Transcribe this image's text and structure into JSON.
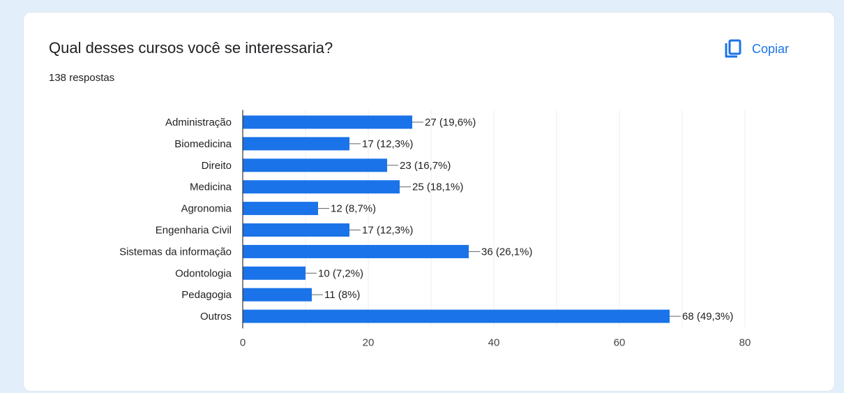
{
  "question": {
    "title": "Qual desses cursos você se interessaria?",
    "responses": "138 respostas"
  },
  "copy_button": {
    "label": "Copiar",
    "icon": "copy-icon"
  },
  "colors": {
    "bar": "#1a73e8",
    "accent": "#1a73e8",
    "background": "#e3eefb"
  },
  "chart_data": {
    "type": "bar",
    "orientation": "horizontal",
    "categories": [
      "Administração",
      "Biomedicina",
      "Direito",
      "Medicina",
      "Agronomia",
      "Engenharia Civil",
      "Sistemas da informação",
      "Odontologia",
      "Pedagogia",
      "Outros"
    ],
    "values": [
      27,
      17,
      23,
      25,
      12,
      17,
      36,
      10,
      11,
      68
    ],
    "data_labels": [
      "27 (19,6%)",
      "17 (12,3%)",
      "23 (16,7%)",
      "25 (18,1%)",
      "12 (8,7%)",
      "17 (12,3%)",
      "36 (26,1%)",
      "10 (7,2%)",
      "11 (8%)",
      "68 (49,3%)"
    ],
    "xlim": [
      0,
      80
    ],
    "xticks": [
      0,
      20,
      40,
      60,
      80
    ],
    "grid": true,
    "legend": "none"
  }
}
